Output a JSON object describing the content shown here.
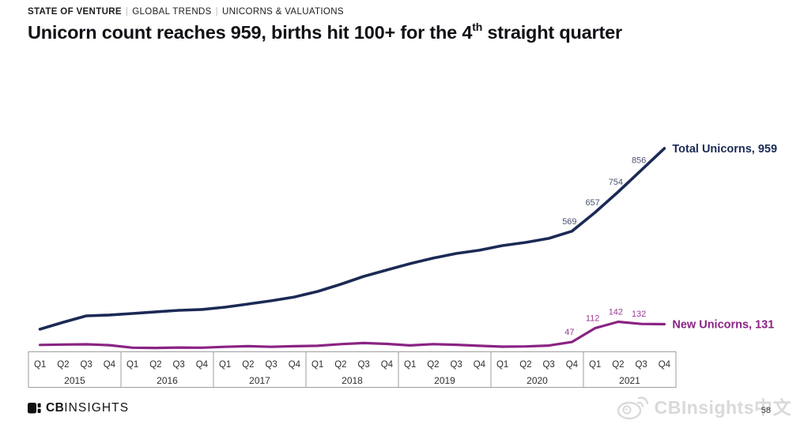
{
  "header": {
    "breadcrumb": [
      "STATE OF VENTURE",
      "GLOBAL TRENDS",
      "UNICORNS & VALUATIONS"
    ],
    "separator": "|"
  },
  "title": {
    "prefix": "Unicorn count reaches 959, births hit 100+ for the 4",
    "sup": "th",
    "suffix": " straight quarter"
  },
  "chart_data": {
    "type": "line",
    "years": [
      "2015",
      "2016",
      "2017",
      "2018",
      "2019",
      "2020",
      "2021"
    ],
    "quarter_labels": [
      "Q1",
      "Q2",
      "Q3",
      "Q4"
    ],
    "grid": false,
    "ylim": [
      0,
      1000
    ],
    "legend_position": "line-end",
    "series": [
      {
        "name": "Total Unicorns",
        "color": "#1b2a55",
        "label_color": "#4a5472",
        "width": 3.6,
        "end_label": "Total Unicorns, 959",
        "values": [
          107,
          140,
          170,
          174,
          181,
          189,
          196,
          200,
          211,
          226,
          241,
          259,
          285,
          319,
          356,
          386,
          416,
          442,
          464,
          479,
          501,
          516,
          535,
          569,
          657,
          754,
          856,
          959
        ],
        "point_labels": {
          "23": "569",
          "24": "657",
          "25": "754",
          "26": "856"
        }
      },
      {
        "name": "New Unicorns",
        "color": "#8a2383",
        "label_color": "#9c3a94",
        "width": 3.2,
        "end_label": "New Unicorns, 131",
        "values": [
          33,
          35,
          36,
          32,
          20,
          19,
          21,
          20,
          24,
          27,
          24,
          27,
          29,
          37,
          42,
          38,
          31,
          37,
          34,
          29,
          25,
          26,
          30,
          47,
          112,
          142,
          132,
          131
        ],
        "point_labels": {
          "23": "47",
          "24": "112",
          "25": "142",
          "26": "132"
        }
      }
    ]
  },
  "footer": {
    "logo_icon": "cbinsights-block-icon",
    "logo_bold": "CB",
    "logo_light": "INSIGHTS",
    "watermark_icon": "weibo-icon",
    "watermark_text": "CBInsights中文",
    "page_number": "58"
  }
}
